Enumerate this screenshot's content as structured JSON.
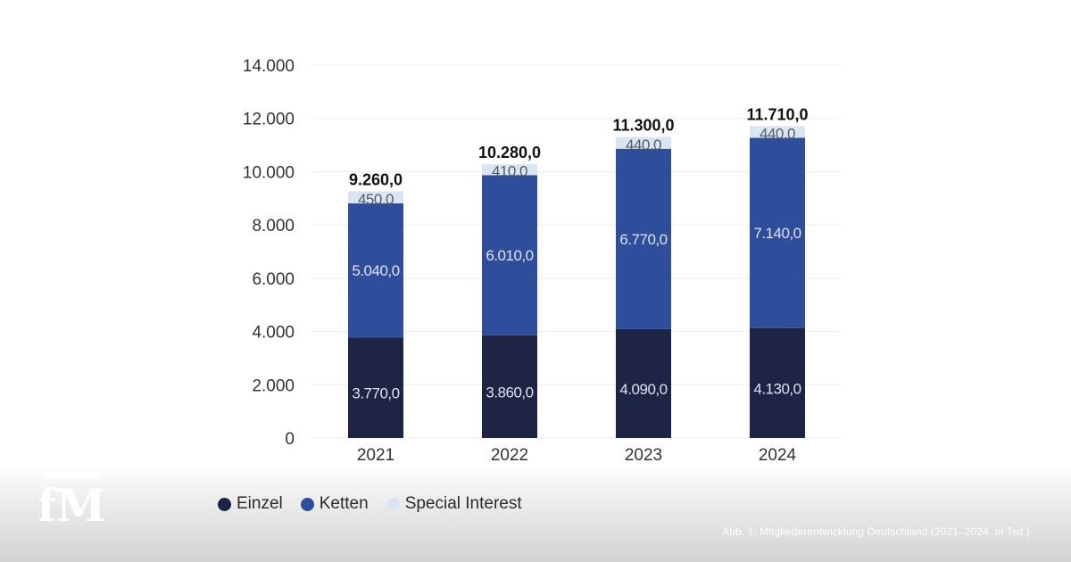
{
  "chart_data": {
    "type": "bar",
    "stacked": true,
    "categories": [
      "2021",
      "2022",
      "2023",
      "2024"
    ],
    "series": [
      {
        "name": "Einzel",
        "values": [
          3770,
          3860,
          4090,
          4130
        ],
        "labels": [
          "3.770,0",
          "3.860,0",
          "4.090,0",
          "4.130,0"
        ],
        "color": "#1e2444",
        "label_color": "#dde3f3"
      },
      {
        "name": "Ketten",
        "values": [
          5040,
          6010,
          6770,
          7140
        ],
        "labels": [
          "5.040,0",
          "6.010,0",
          "6.770,0",
          "7.140,0"
        ],
        "color": "#2e4d9a",
        "label_color": "#dde3f3"
      },
      {
        "name": "Special Interest",
        "values": [
          450,
          410,
          440,
          440
        ],
        "labels": [
          "450,0",
          "410,0",
          "440,0",
          "440,0"
        ],
        "color": "#d9e6f1",
        "label_color": "#555b66"
      }
    ],
    "totals": [
      "9.260,0",
      "10.280,0",
      "11.300,0",
      "11.710,0"
    ],
    "total_values": [
      9260,
      10280,
      11300,
      11710
    ],
    "ylim": [
      0,
      14000
    ],
    "yticks": [
      0,
      2000,
      4000,
      6000,
      8000,
      10000,
      12000,
      14000
    ],
    "ytick_labels": [
      "0",
      "2.000",
      "4.000",
      "6.000",
      "8.000",
      "10.000",
      "12.000",
      "14.000"
    ],
    "grid": true,
    "legend_position": "bottom-left",
    "title": "",
    "xlabel": "",
    "ylabel": ""
  },
  "logo": {
    "text": "fM",
    "icon": "fm-logo"
  },
  "caption": "Abb. 1: Mitgliederentwicklung Deutschland (2021–2024, in Tsd.)"
}
